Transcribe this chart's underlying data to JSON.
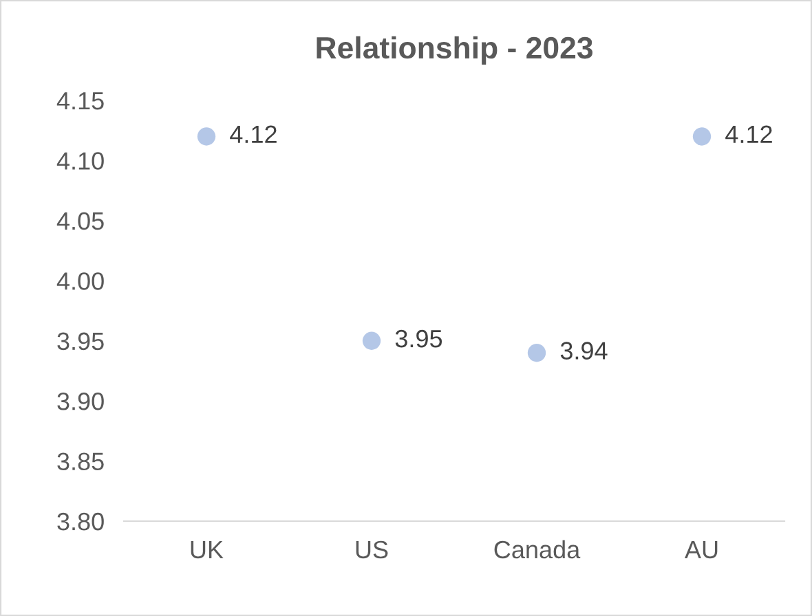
{
  "chart_data": {
    "type": "scatter",
    "title": "Relationship - 2023",
    "categories": [
      "UK",
      "US",
      "Canada",
      "AU"
    ],
    "series": [
      {
        "color": "#b4c7e7",
        "values": [
          4.12,
          3.95,
          3.94,
          4.12
        ]
      }
    ],
    "marker": "circle",
    "data_labels": true,
    "grid": false,
    "legend": false,
    "ylim": [
      3.8,
      4.15
    ],
    "yticks": [
      {
        "value": 3.8,
        "label": "3.80"
      },
      {
        "value": 3.85,
        "label": "3.85"
      },
      {
        "value": 3.9,
        "label": "3.90"
      },
      {
        "value": 3.95,
        "label": "3.95"
      },
      {
        "value": 4.0,
        "label": "4.00"
      },
      {
        "value": 4.05,
        "label": "4.05"
      },
      {
        "value": 4.1,
        "label": "4.10"
      },
      {
        "value": 4.15,
        "label": "4.15"
      }
    ]
  }
}
